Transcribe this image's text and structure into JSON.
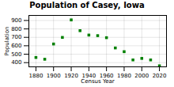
{
  "chart_data": {
    "type": "scatter",
    "title": "Population of Casey, Iowa",
    "xlabel": "Census Year",
    "ylabel": "Population",
    "x": [
      1880,
      1890,
      1900,
      1910,
      1920,
      1930,
      1940,
      1950,
      1960,
      1970,
      1980,
      1990,
      2000,
      2010,
      2020
    ],
    "values": [
      461,
      440,
      621,
      699,
      907,
      779,
      727,
      720,
      696,
      574,
      530,
      432,
      450,
      432,
      362
    ],
    "color": "#008000",
    "marker": "square",
    "xlim": [
      1872,
      2028
    ],
    "ylim": [
      350,
      960
    ],
    "xticks": [
      1880,
      1900,
      1920,
      1940,
      1960,
      1980,
      2000,
      2020
    ],
    "yticks": [
      400,
      500,
      600,
      700,
      800,
      900
    ],
    "grid": true
  }
}
